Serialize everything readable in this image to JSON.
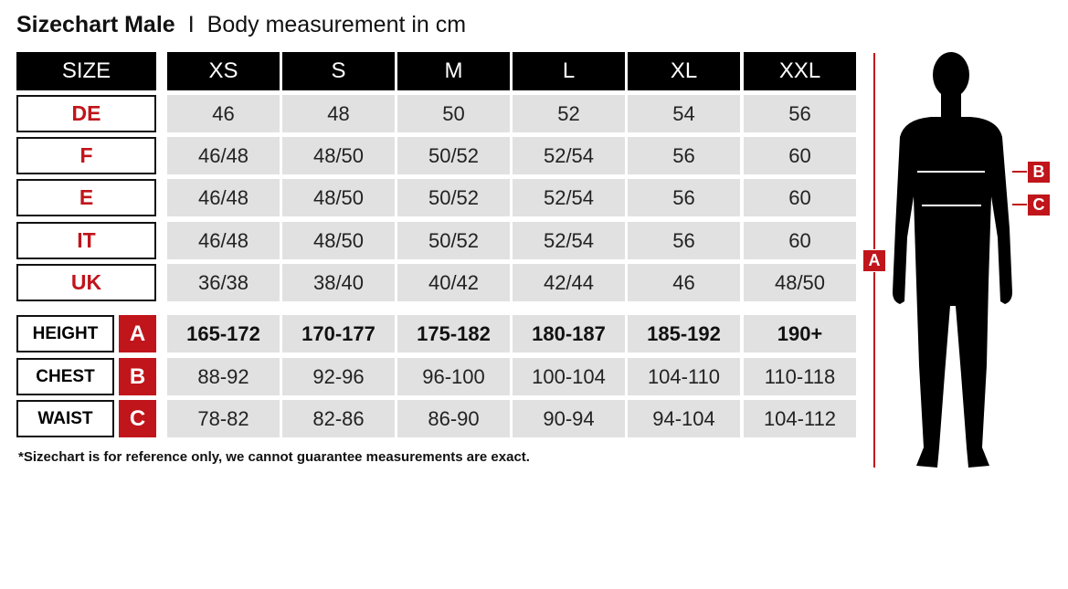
{
  "title": {
    "bold": "Sizechart Male",
    "separator": "I",
    "subtitle": "Body measurement in cm"
  },
  "table": {
    "corner": "SIZE",
    "sizes": [
      "XS",
      "S",
      "M",
      "L",
      "XL",
      "XXL"
    ],
    "conversion_rows": [
      {
        "label": "DE",
        "values": [
          "46",
          "48",
          "50",
          "52",
          "54",
          "56"
        ]
      },
      {
        "label": "F",
        "values": [
          "46/48",
          "48/50",
          "50/52",
          "52/54",
          "56",
          "60"
        ]
      },
      {
        "label": "E",
        "values": [
          "46/48",
          "48/50",
          "50/52",
          "52/54",
          "56",
          "60"
        ]
      },
      {
        "label": "IT",
        "values": [
          "46/48",
          "48/50",
          "50/52",
          "52/54",
          "56",
          "60"
        ]
      },
      {
        "label": "UK",
        "values": [
          "36/38",
          "38/40",
          "40/42",
          "42/44",
          "46",
          "48/50"
        ]
      }
    ],
    "measurement_rows": [
      {
        "label": "HEIGHT",
        "key": "A",
        "values": [
          "165-172",
          "170-177",
          "175-182",
          "180-187",
          "185-192",
          "190+"
        ]
      },
      {
        "label": "CHEST",
        "key": "B",
        "values": [
          "88-92",
          "92-96",
          "96-100",
          "100-104",
          "104-110",
          "110-118"
        ]
      },
      {
        "label": "WAIST",
        "key": "C",
        "values": [
          "78-82",
          "82-86",
          "86-90",
          "90-94",
          "94-104",
          "104-112"
        ]
      }
    ]
  },
  "footnote": "*Sizechart is for reference only, we cannot guarantee measurements are exact.",
  "figure": {
    "markers": [
      "A",
      "B",
      "C"
    ]
  },
  "colors": {
    "accent": "#c0151b",
    "header": "#000000",
    "cell": "#e1e1e1"
  }
}
